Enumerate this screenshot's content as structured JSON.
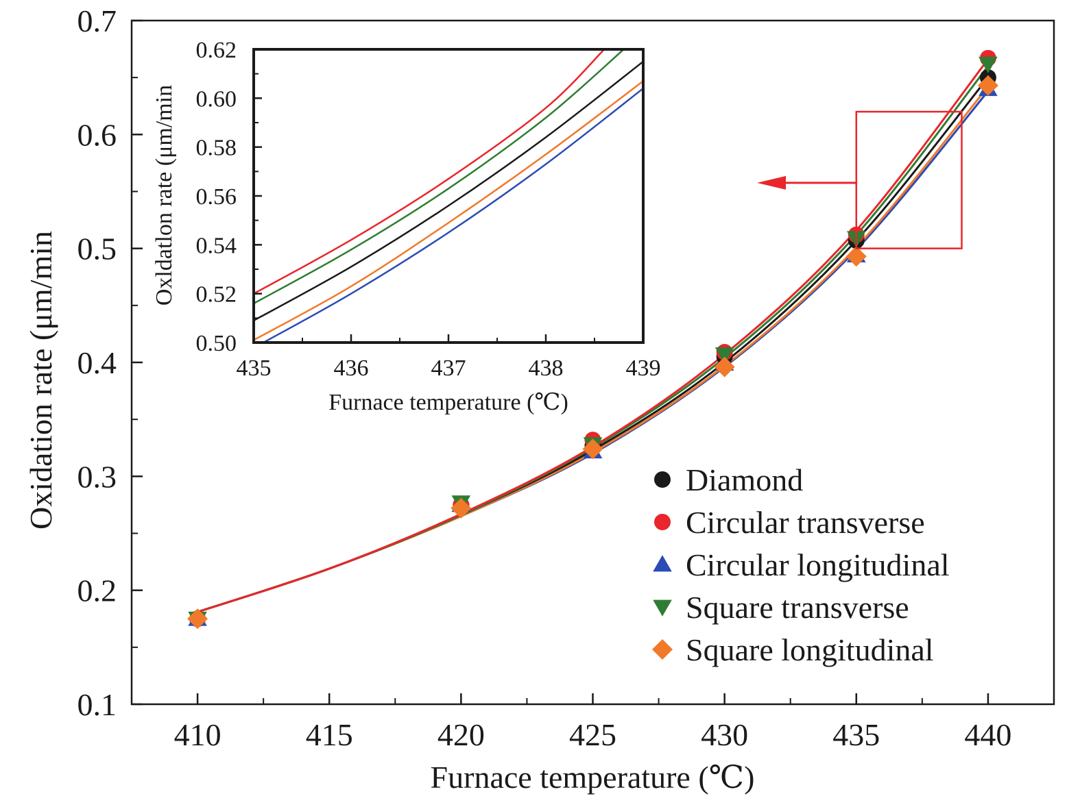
{
  "chart_data": [
    {
      "type": "line",
      "role": "main",
      "xlabel": "Furnace temperature (℃)",
      "ylabel": "Oxidation rate (μm/min",
      "xlim": [
        407.5,
        442.5
      ],
      "ylim": [
        0.1,
        0.7
      ],
      "x_ticks": [
        "410",
        "415",
        "420",
        "425",
        "430",
        "435",
        "440"
      ],
      "y_ticks": [
        "0.1",
        "0.2",
        "0.3",
        "0.4",
        "0.5",
        "0.6",
        "0.7"
      ],
      "legend_position": "bottom-right",
      "series": [
        {
          "name": "Diamond",
          "color": "#1a1a1a",
          "marker": "circle",
          "points": [
            [
              410,
              0.175
            ],
            [
              420,
              0.275
            ],
            [
              425,
              0.327
            ],
            [
              430,
              0.405
            ],
            [
              435,
              0.507
            ],
            [
              440,
              0.65
            ]
          ],
          "fit": [
            [
              410,
              0.181
            ],
            [
              415,
              0.219
            ],
            [
              420,
              0.266
            ],
            [
              425,
              0.323
            ],
            [
              430,
              0.4
            ],
            [
              435,
              0.507
            ],
            [
              440,
              0.65
            ]
          ]
        },
        {
          "name": "Circular transverse",
          "color": "#e8262b",
          "marker": "circle",
          "points": [
            [
              410,
              0.175
            ],
            [
              420,
              0.275
            ],
            [
              425,
              0.332
            ],
            [
              430,
              0.409
            ],
            [
              435,
              0.512
            ],
            [
              440,
              0.667
            ]
          ],
          "fit": [
            [
              410,
              0.181
            ],
            [
              415,
              0.219
            ],
            [
              420,
              0.267
            ],
            [
              425,
              0.326
            ],
            [
              430,
              0.407
            ],
            [
              435,
              0.516
            ],
            [
              440,
              0.666
            ]
          ]
        },
        {
          "name": "Circular longitudinal",
          "color": "#2b4bb5",
          "marker": "triangle-up",
          "points": [
            [
              410,
              0.175
            ],
            [
              420,
              0.275
            ],
            [
              425,
              0.322
            ],
            [
              430,
              0.399
            ],
            [
              435,
              0.494
            ],
            [
              440,
              0.64
            ]
          ],
          "fit": [
            [
              410,
              0.181
            ],
            [
              415,
              0.219
            ],
            [
              420,
              0.265
            ],
            [
              425,
              0.32
            ],
            [
              430,
              0.396
            ],
            [
              435,
              0.499
            ],
            [
              440,
              0.638
            ]
          ]
        },
        {
          "name": "Square transverse",
          "color": "#2f7d32",
          "marker": "triangle-down",
          "points": [
            [
              410,
              0.175
            ],
            [
              420,
              0.277
            ],
            [
              425,
              0.328
            ],
            [
              430,
              0.407
            ],
            [
              435,
              0.509
            ],
            [
              440,
              0.662
            ]
          ],
          "fit": [
            [
              410,
              0.181
            ],
            [
              415,
              0.219
            ],
            [
              420,
              0.266
            ],
            [
              425,
              0.325
            ],
            [
              430,
              0.404
            ],
            [
              435,
              0.512
            ],
            [
              440,
              0.66
            ]
          ]
        },
        {
          "name": "Square longitudinal",
          "color": "#f07a2a",
          "marker": "diamond",
          "points": [
            [
              410,
              0.175
            ],
            [
              420,
              0.272
            ],
            [
              425,
              0.324
            ],
            [
              430,
              0.396
            ],
            [
              435,
              0.493
            ],
            [
              440,
              0.643
            ]
          ],
          "fit": [
            [
              410,
              0.181
            ],
            [
              415,
              0.219
            ],
            [
              420,
              0.265
            ],
            [
              425,
              0.321
            ],
            [
              430,
              0.397
            ],
            [
              435,
              0.501
            ],
            [
              440,
              0.642
            ]
          ]
        }
      ],
      "zoom_box": {
        "x": [
          435,
          439
        ],
        "y": [
          0.5,
          0.62
        ],
        "color": "#e8262b"
      }
    },
    {
      "type": "line",
      "role": "inset",
      "xlabel": "Furnace temperature (℃)",
      "ylabel": "Oxldatlon rate (μm/min",
      "xlim": [
        435,
        439
      ],
      "ylim": [
        0.5,
        0.62
      ],
      "x_ticks": [
        "435",
        "436",
        "437",
        "438",
        "439"
      ],
      "y_ticks": [
        "0.50",
        "0.52",
        "0.54",
        "0.56",
        "0.58",
        "0.60",
        "0.62"
      ],
      "series": [
        {
          "color": "#e8262b",
          "points": [
            [
              435,
              0.52
            ],
            [
              436,
              0.542
            ],
            [
              437,
              0.567
            ],
            [
              438,
              0.596
            ],
            [
              438.6,
              0.62
            ]
          ]
        },
        {
          "color": "#2f7d32",
          "points": [
            [
              435,
              0.516
            ],
            [
              436,
              0.538
            ],
            [
              437,
              0.563
            ],
            [
              438,
              0.592
            ],
            [
              438.8,
              0.62
            ]
          ]
        },
        {
          "color": "#1a1a1a",
          "points": [
            [
              435,
              0.509
            ],
            [
              436,
              0.531
            ],
            [
              437,
              0.556
            ],
            [
              438,
              0.584
            ],
            [
              439,
              0.615
            ]
          ]
        },
        {
          "color": "#f07a2a",
          "points": [
            [
              435,
              0.501
            ],
            [
              436,
              0.523
            ],
            [
              437,
              0.549
            ],
            [
              438,
              0.577
            ],
            [
              439,
              0.607
            ]
          ]
        },
        {
          "color": "#2b4bb5",
          "points": [
            [
              435.1,
              0.5
            ],
            [
              436,
              0.52
            ],
            [
              437,
              0.545
            ],
            [
              438,
              0.573
            ],
            [
              439,
              0.604
            ]
          ]
        }
      ]
    }
  ]
}
